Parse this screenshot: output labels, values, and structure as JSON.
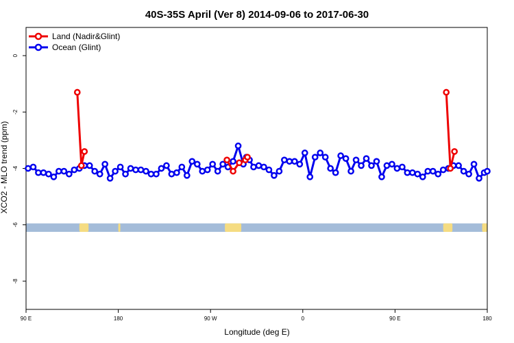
{
  "chart_data": {
    "type": "line",
    "title": "40S-35S April (Ver 8)   2014-09-06 to 2017-06-30",
    "xlabel": "Longitude (deg E)",
    "ylabel": "XCO2 - MLO trend (ppm)",
    "xlim": [
      90,
      540
    ],
    "ylim": [
      -9,
      1
    ],
    "grid": false,
    "legend_position": "top-left",
    "x_ticks": [
      {
        "value": 90,
        "label": "90 E"
      },
      {
        "value": 180,
        "label": "180"
      },
      {
        "value": 270,
        "label": "90 W"
      },
      {
        "value": 360,
        "label": "0"
      },
      {
        "value": 450,
        "label": "90 E"
      },
      {
        "value": 540,
        "label": "180"
      }
    ],
    "y_ticks": [
      {
        "value": 0,
        "label": "0"
      },
      {
        "value": -2,
        "label": "-2"
      },
      {
        "value": -4,
        "label": "-4"
      },
      {
        "value": -6,
        "label": "-6"
      },
      {
        "value": -8,
        "label": "-8"
      }
    ],
    "series": [
      {
        "name": "Land (Nadir&Glint)",
        "color": "#ee0000",
        "segments": [
          {
            "x": [
              140,
              144,
              147
            ],
            "y": [
              -1.3,
              -3.9,
              -3.4
            ]
          },
          {
            "x": [
              286,
              292,
              298,
              304,
              306
            ],
            "y": [
              -3.7,
              -4.1,
              -3.8,
              -3.7,
              -3.6
            ]
          },
          {
            "x": [
              500,
              504,
              508
            ],
            "y": [
              -1.3,
              -4.0,
              -3.4
            ]
          }
        ]
      },
      {
        "name": "Ocean (Glint)",
        "color": "#0000ee",
        "x": [
          92,
          97,
          102,
          107,
          112,
          117,
          122,
          127,
          132,
          137,
          142,
          147,
          152,
          157,
          162,
          167,
          172,
          177,
          182,
          187,
          192,
          197,
          202,
          207,
          212,
          217,
          222,
          227,
          232,
          237,
          242,
          247,
          252,
          257,
          262,
          267,
          272,
          277,
          282,
          287,
          292,
          297,
          302,
          305,
          308,
          312,
          317,
          322,
          327,
          332,
          337,
          342,
          347,
          352,
          357,
          362,
          367,
          372,
          377,
          382,
          387,
          392,
          397,
          402,
          407,
          412,
          417,
          422,
          427,
          432,
          437,
          442,
          447,
          452,
          457,
          462,
          467,
          472,
          477,
          482,
          487,
          492,
          497,
          502,
          507,
          512,
          517,
          522,
          527,
          532,
          537,
          540
        ],
        "y": [
          -4.0,
          -3.95,
          -4.15,
          -4.15,
          -4.2,
          -4.3,
          -4.1,
          -4.1,
          -4.2,
          -4.05,
          -4.0,
          -3.9,
          -3.9,
          -4.1,
          -4.2,
          -3.85,
          -4.35,
          -4.1,
          -3.95,
          -4.2,
          -4.0,
          -4.05,
          -4.05,
          -4.1,
          -4.2,
          -4.2,
          -4.0,
          -3.9,
          -4.2,
          -4.15,
          -3.95,
          -4.25,
          -3.75,
          -3.85,
          -4.1,
          -4.05,
          -3.85,
          -4.1,
          -3.85,
          -3.95,
          -3.75,
          -3.2,
          -3.85,
          -3.6,
          -3.7,
          -3.95,
          -3.9,
          -3.95,
          -4.05,
          -4.25,
          -4.1,
          -3.7,
          -3.75,
          -3.75,
          -3.85,
          -3.45,
          -4.3,
          -3.6,
          -3.45,
          -3.6,
          -4.0,
          -4.15,
          -3.55,
          -3.65,
          -4.1,
          -3.7,
          -3.9,
          -3.65,
          -3.9,
          -3.75,
          -4.3,
          -3.9,
          -3.85,
          -4.0,
          -3.95,
          -4.15,
          -4.15,
          -4.2,
          -4.3,
          -4.1,
          -4.1,
          -4.2,
          -4.05,
          -4.0,
          -3.9,
          -3.9,
          -4.1,
          -4.2,
          -3.85,
          -4.35,
          -4.15,
          -4.1
        ]
      }
    ],
    "map_strip": {
      "y_top": -5.95,
      "y_bottom": -6.25,
      "ocean_color": "#a4bcd9",
      "land_color": "#f5dc82",
      "land_spans": [
        [
          142,
          151
        ],
        [
          180,
          182
        ],
        [
          284,
          300
        ],
        [
          497,
          506
        ],
        [
          535,
          540
        ]
      ]
    }
  }
}
